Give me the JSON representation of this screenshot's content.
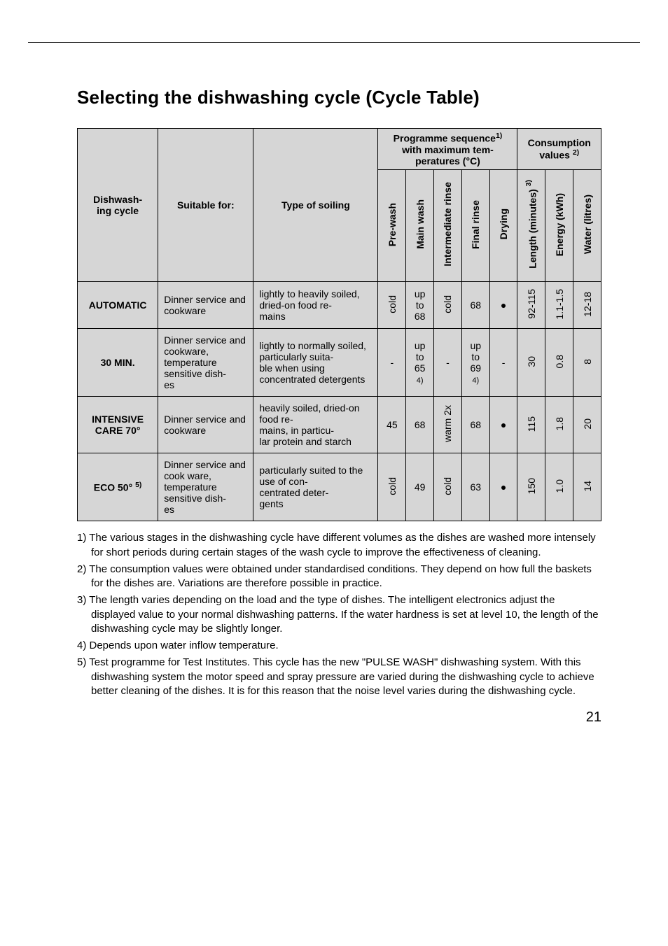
{
  "title": "Selecting the dishwashing cycle (Cycle Table)",
  "headers": {
    "col_cycle": "Dishwashing cycle",
    "col_suitable": "Suitable for:",
    "col_soiling": "Type of soiling",
    "grp_seq": "Programme sequence",
    "grp_seq_sup": "1)",
    "grp_seq_line2": "with maximum temperatures (°C)",
    "grp_cons": "Consumption values",
    "grp_cons_sup": "2)",
    "seq": {
      "prewash": "Pre-wash",
      "mainwash": "Main wash",
      "inter": "Intermediate rinse",
      "final": "Final rinse",
      "drying": "Drying"
    },
    "cons": {
      "length": "Length (minutes)",
      "length_sup": "3)",
      "energy": "Energy (kWh)",
      "water": "Water (litres)"
    }
  },
  "rows": [
    {
      "cycle": "AUTOMATIC",
      "suitable": "Dinner service and cookware",
      "soiling": "lightly to heavily soiled,\ndried-on food remains",
      "prewash": "cold",
      "mainwash": "up to 68",
      "inter": "cold",
      "final": "68",
      "drying": "●",
      "length": "92-115",
      "energy": "1.1-1.5",
      "water": "12-18"
    },
    {
      "cycle": "30 MIN.",
      "suitable": "Dinner service and cookware, temperature sensitive dishes",
      "soiling": "lightly to normally soiled,\nparticularly suitable when using concentrated detergents",
      "prewash": "-",
      "mainwash": "up to 65 4)",
      "inter": "-",
      "final": "up to 69 4)",
      "drying": "-",
      "length": "30",
      "energy": "0.8",
      "water": "8"
    },
    {
      "cycle": "INTENSIVE CARE 70°",
      "suitable": "Dinner service and cookware",
      "soiling": "heavily soiled, dried-on food remains, in particular protein and starch",
      "prewash": "45",
      "mainwash": "68",
      "inter": "warm 2x",
      "final": "68",
      "drying": "●",
      "length": "115",
      "energy": "1.8",
      "water": "20"
    },
    {
      "cycle": "ECO 50°",
      "cycle_sup": "5)",
      "suitable": "Dinner service and cook ware, temperature sensitive dishes",
      "soiling": "particularly suited to the use of concentrated detergents",
      "prewash": "cold",
      "mainwash": "49",
      "inter": "cold",
      "final": "63",
      "drying": "●",
      "length": "150",
      "energy": "1.0",
      "water": "14"
    }
  ],
  "notes": [
    "1) The various stages in the dishwashing cycle have different volumes as the dishes are washed more intensely for short periods during certain stages of the wash cycle to improve the effectiveness of cleaning.",
    "2) The consumption values were obtained under standardised conditions. They depend on how full the baskets for the dishes are. Variations are therefore possible in practice.",
    "3) The length varies depending on the load and the type of dishes. The intelligent electronics adjust the displayed value to your normal dishwashing patterns. If the water hardness is set at level 10, the length of the dishwashing cycle may be slightly longer.",
    "4) Depends upon water inflow temperature.",
    "5) Test programme for Test Institutes. This cycle has the new \"PULSE WASH\" dishwashing system. With this dishwashing system the motor speed and spray pressure are varied during the dishwashing cycle to achieve better cleaning of the dishes. It is for this reason that the noise level varies during the dishwashing cycle."
  ],
  "page_number": "21"
}
